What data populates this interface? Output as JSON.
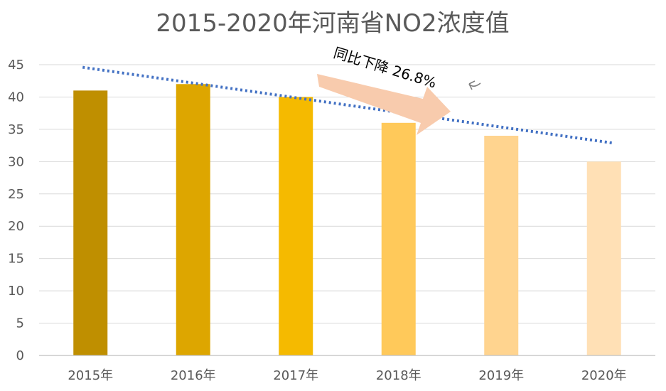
{
  "chart_data": {
    "type": "bar",
    "title": "2015-2020年河南省NO2浓度值",
    "categories": [
      "2015年",
      "2016年",
      "2017年",
      "2018年",
      "2019年",
      "2020年"
    ],
    "values": [
      41,
      42,
      40,
      36,
      34,
      30
    ],
    "bar_colors": [
      "#BF8F00",
      "#DDA600",
      "#F5BA00",
      "#FFC95A",
      "#FFD48F",
      "#FFE0B5"
    ],
    "ylim": [
      0,
      45
    ],
    "yticks": [
      "0",
      "5",
      "10",
      "15",
      "20",
      "25",
      "30",
      "35",
      "40",
      "45"
    ],
    "grid": true,
    "trendline": {
      "style": "dotted",
      "color": "#4472C4",
      "start": 44.6,
      "end": 32.9
    },
    "annotation": {
      "text": "同比下降 26.8%",
      "arrow_color": "#F8CBAD"
    }
  }
}
